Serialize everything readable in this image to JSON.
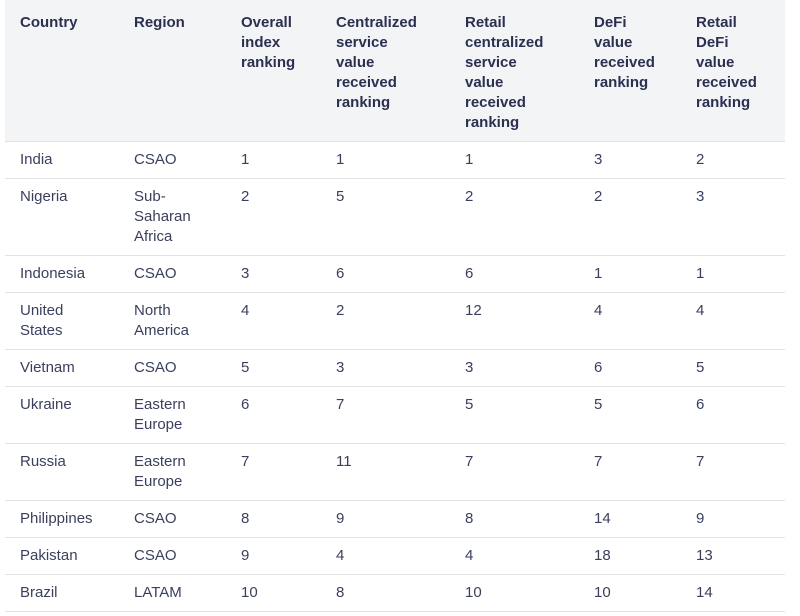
{
  "table": {
    "header": [
      "Country",
      "Region",
      "Overall index ranking",
      "Centralized service value received ranking",
      "Retail centralized service value received ranking",
      "DeFi value received ranking",
      "Retail DeFi value received ranking"
    ],
    "rows": [
      [
        "India",
        "CSAO",
        1,
        1,
        1,
        3,
        2
      ],
      [
        "Nigeria",
        "Sub-Saharan Africa",
        2,
        5,
        2,
        2,
        3
      ],
      [
        "Indonesia",
        "CSAO",
        3,
        6,
        6,
        1,
        1
      ],
      [
        "United States",
        "North America",
        4,
        2,
        12,
        4,
        4
      ],
      [
        "Vietnam",
        "CSAO",
        5,
        3,
        3,
        6,
        5
      ],
      [
        "Ukraine",
        "Eastern Europe",
        6,
        7,
        5,
        5,
        6
      ],
      [
        "Russia",
        "Eastern Europe",
        7,
        11,
        7,
        7,
        7
      ],
      [
        "Philippines",
        "CSAO",
        8,
        9,
        8,
        14,
        9
      ],
      [
        "Pakistan",
        "CSAO",
        9,
        4,
        4,
        18,
        13
      ],
      [
        "Brazil",
        "LATAM",
        10,
        8,
        10,
        10,
        14
      ]
    ]
  }
}
